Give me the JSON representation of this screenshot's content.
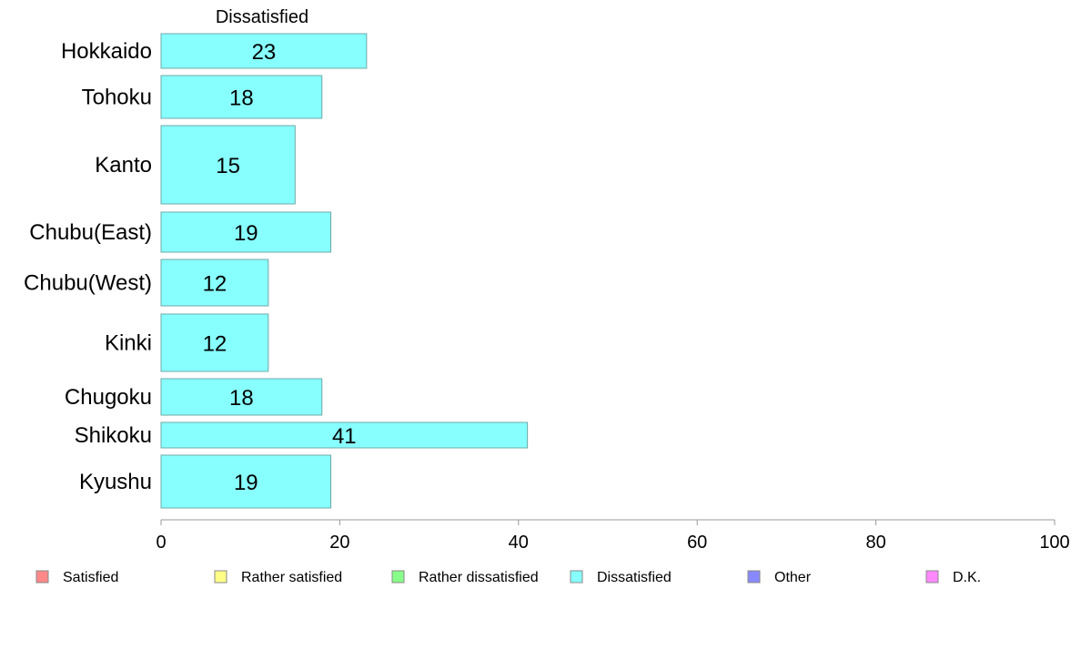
{
  "chart_data": {
    "type": "bar",
    "orientation": "horizontal",
    "panel_title": "Dissatisfied",
    "categories": [
      "Hokkaido",
      "Tohoku",
      "Kanto",
      "Chubu(East)",
      "Chubu(West)",
      "Kinki",
      "Chugoku",
      "Shikoku",
      "Kyushu"
    ],
    "series": [
      {
        "name": "Dissatisfied",
        "values": [
          23,
          18,
          15,
          19,
          12,
          12,
          18,
          41,
          19
        ],
        "color": "#88ffff"
      }
    ],
    "bar_labels": [
      "23",
      "18",
      "15",
      "19",
      "12",
      "12",
      "18",
      "41",
      "19"
    ],
    "xlim": [
      0,
      100
    ],
    "x_ticks": [
      0,
      20,
      40,
      60,
      80,
      100
    ],
    "x_tick_labels": [
      "0",
      "20",
      "40",
      "60",
      "80",
      "100"
    ],
    "grid": false,
    "legend_position": "bottom",
    "legend": [
      {
        "label": "Satisfied",
        "color": "#ff8888"
      },
      {
        "label": "Rather satisfied",
        "color": "#ffff88"
      },
      {
        "label": "Rather dissatisfied",
        "color": "#88ff88"
      },
      {
        "label": "Dissatisfied",
        "color": "#88ffff"
      },
      {
        "label": "Other",
        "color": "#8888ff"
      },
      {
        "label": "D.K.",
        "color": "#ff88ff"
      }
    ]
  }
}
